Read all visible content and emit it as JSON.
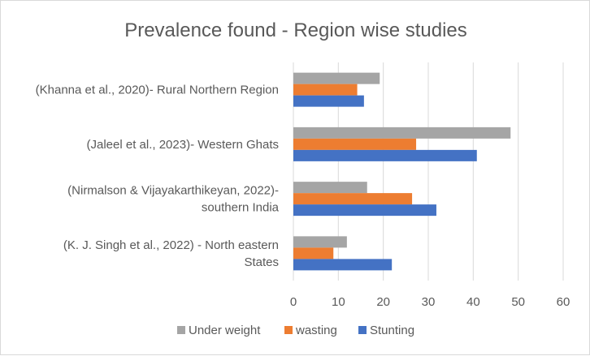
{
  "chart_data": {
    "type": "bar",
    "orientation": "horizontal",
    "title": "Prevalence found - Region wise studies",
    "categories": [
      [
        "(Khanna et al., 2020)- Rural Northern Region"
      ],
      [
        "(Jaleel et al., 2023)- Western Ghats"
      ],
      [
        "(Nirmalson & Vijayakarthikeyan, 2022)-",
        "southern India"
      ],
      [
        "(K. J. Singh et al., 2022) - North eastern",
        "States"
      ]
    ],
    "series": [
      {
        "name": "Under weight",
        "color": "#a5a5a5",
        "values": [
          19.2,
          48.3,
          16.4,
          11.9
        ]
      },
      {
        "name": "wasting",
        "color": "#ed7d31",
        "values": [
          14.2,
          27.3,
          26.4,
          8.9
        ]
      },
      {
        "name": "Stunting",
        "color": "#4472c4",
        "values": [
          15.7,
          40.8,
          31.8,
          21.9
        ]
      }
    ],
    "xlim": [
      0,
      60
    ],
    "xticks": [
      "0",
      "10",
      "20",
      "30",
      "40",
      "50",
      "60"
    ],
    "grid": true,
    "legend": "bottom"
  }
}
